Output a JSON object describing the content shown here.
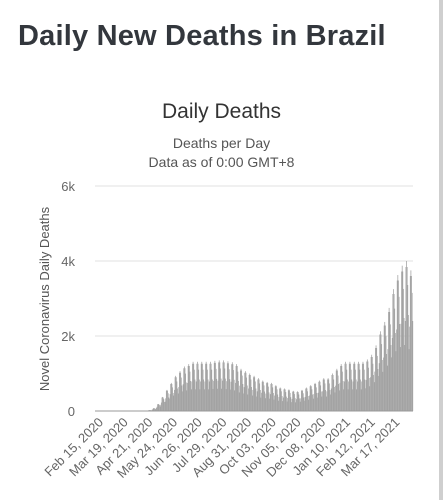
{
  "page": {
    "title": "Daily New Deaths in Brazil"
  },
  "chart_data": {
    "type": "bar",
    "title": "Daily Deaths",
    "subtitle": "Deaths per Day",
    "subtitle2": "Data as of 0:00 GMT+8",
    "xlabel": "",
    "ylabel": "Novel Coronavirus Daily Deaths",
    "ylim": [
      0,
      6000
    ],
    "yticks": [
      0,
      2000,
      4000,
      6000
    ],
    "yticklabels": [
      "0",
      "2k",
      "4k",
      "6k"
    ],
    "grid": true,
    "bar_color": "#a3a3a3",
    "xticklabels": [
      "Feb 15, 2020",
      "Mar 19, 2020",
      "Apr 21, 2020",
      "May 24, 2020",
      "Jun 26, 2020",
      "Jul 29, 2020",
      "Aug 31, 2020",
      "Oct 03, 2020",
      "Nov 05, 2020",
      "Dec 08, 2020",
      "Jan 10, 2021",
      "Feb 12, 2021",
      "Mar 17, 2021"
    ],
    "weekly_average_values": [
      0,
      0,
      0,
      0,
      0,
      0,
      0,
      0,
      0,
      0,
      0,
      5,
      20,
      60,
      150,
      300,
      450,
      600,
      750,
      850,
      950,
      1000,
      1050,
      1050,
      1050,
      1050,
      1050,
      1070,
      1080,
      1080,
      1060,
      1040,
      1000,
      900,
      850,
      800,
      750,
      700,
      650,
      620,
      600,
      550,
      500,
      480,
      460,
      430,
      420,
      450,
      500,
      550,
      600,
      650,
      700,
      700,
      800,
      900,
      1000,
      1050,
      1050,
      1050,
      1050,
      1050,
      1100,
      1200,
      1400,
      1700,
      1900,
      2200,
      2600,
      2900,
      3100,
      3200,
      3000
    ]
  }
}
